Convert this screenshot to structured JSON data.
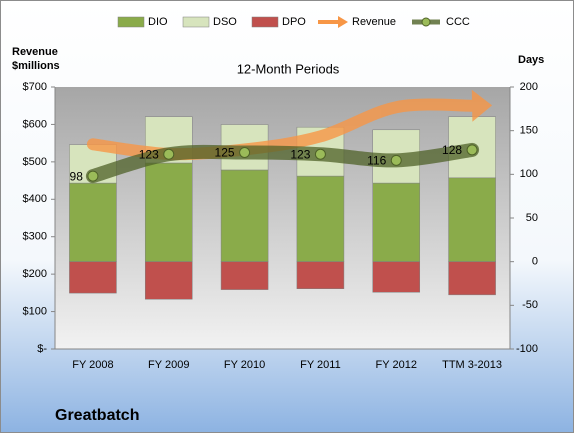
{
  "chart_data": {
    "type": "combo",
    "title": "Greatbatch",
    "subtitle": "12-Month Periods",
    "y_label": [
      "Revenue",
      "$millions"
    ],
    "y2_label": "Days",
    "categories": [
      "FY 2008",
      "FY 2009",
      "FY 2010",
      "FY 2011",
      "FY 2012",
      "TTM 3-2013"
    ],
    "series": [
      {
        "name": "DIO",
        "type": "bar",
        "axis": "y2",
        "color": "#8aab4a",
        "values": [
          90,
          113,
          105,
          98,
          90,
          96
        ]
      },
      {
        "name": "DSO",
        "type": "bar",
        "axis": "y2",
        "color": "#d7e4bd",
        "values": [
          44,
          53,
          52,
          56,
          61,
          70
        ]
      },
      {
        "name": "DPO",
        "type": "bar",
        "axis": "y2",
        "color": "#c0504d",
        "values": [
          -36,
          -43,
          -32,
          -31,
          -35,
          -38
        ]
      },
      {
        "name": "Revenue",
        "type": "arrow",
        "axis": "y",
        "color": "#f79646",
        "values": [
          547,
          521,
          533,
          568,
          646,
          650
        ]
      },
      {
        "name": "CCC",
        "type": "line",
        "axis": "y2",
        "color": "#4f6228",
        "values": [
          98,
          123,
          125,
          123,
          116,
          128
        ]
      }
    ],
    "ylim": [
      0,
      700
    ],
    "yticks": [
      {
        "value": 0,
        "label": "$-"
      },
      {
        "value": 100,
        "label": "$100"
      },
      {
        "value": 200,
        "label": "$200"
      },
      {
        "value": 300,
        "label": "$300"
      },
      {
        "value": 400,
        "label": "$400"
      },
      {
        "value": 500,
        "label": "$500"
      },
      {
        "value": 600,
        "label": "$600"
      },
      {
        "value": 700,
        "label": "$700"
      }
    ],
    "y2lim": [
      -100,
      200
    ],
    "y2ticks": [
      -100,
      -50,
      0,
      50,
      100,
      150,
      200
    ],
    "legend": "top"
  }
}
